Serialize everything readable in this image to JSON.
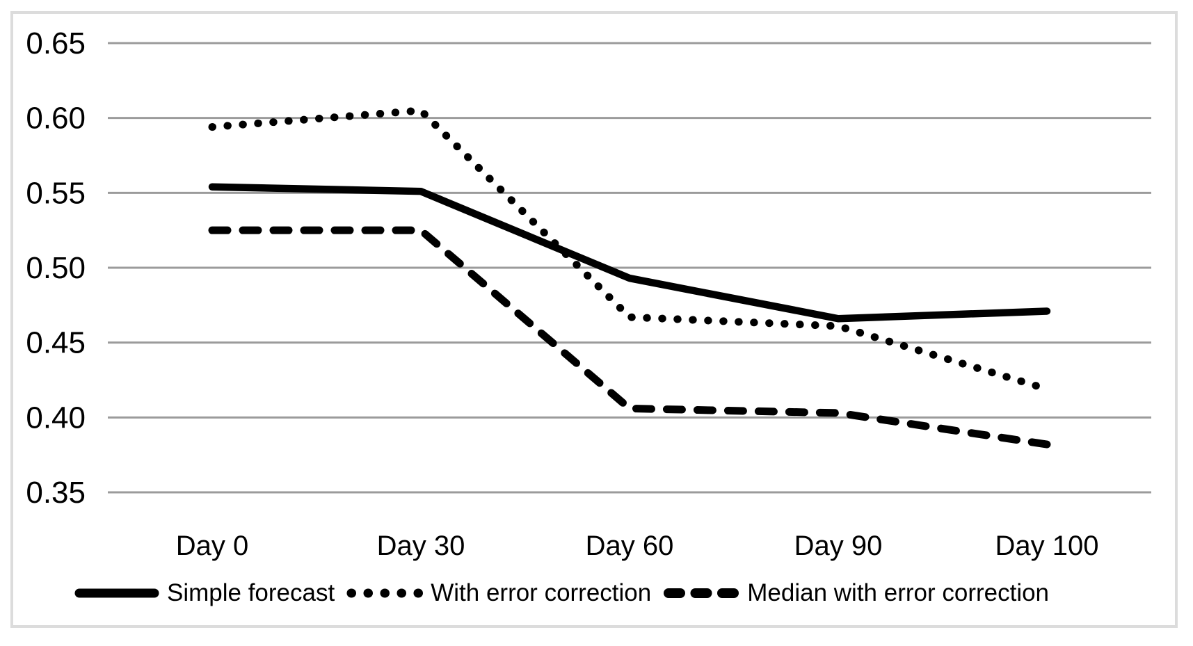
{
  "figure": {
    "background_color": "#ffffff",
    "frame_color": "#dcdcdc",
    "gridline_color": "#9b9b9b",
    "series_color": "#000000",
    "text_color": "#000000"
  },
  "chart_data": {
    "type": "line",
    "title": "",
    "xlabel": "",
    "ylabel": "",
    "categories": [
      "Day 0",
      "Day 30",
      "Day 60",
      "Day 90",
      "Day 100"
    ],
    "series": [
      {
        "name": "Simple forecast",
        "style": "solid",
        "values": [
          0.554,
          0.551,
          0.493,
          0.466,
          0.471
        ]
      },
      {
        "name": "With error correction",
        "style": "dotted",
        "values": [
          0.594,
          0.605,
          0.467,
          0.461,
          0.419
        ]
      },
      {
        "name": "Median with error correction",
        "style": "dashed",
        "values": [
          0.525,
          0.525,
          0.406,
          0.403,
          0.382
        ]
      }
    ],
    "yticks": [
      "0.65",
      "0.60",
      "0.55",
      "0.50",
      "0.45",
      "0.40",
      "0.35"
    ],
    "ylim": [
      0.35,
      0.65
    ],
    "ytick_step": 0.05,
    "grid": true,
    "legend_position": "bottom"
  }
}
